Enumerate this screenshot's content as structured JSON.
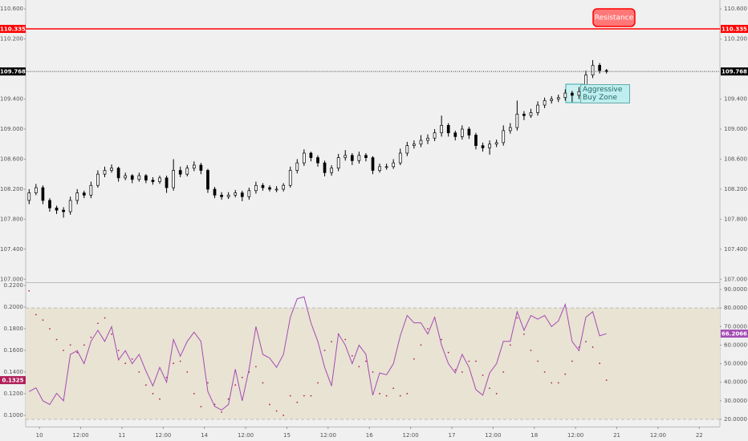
{
  "chart_data": [
    {
      "type": "candlestick",
      "x": [
        -3,
        -1,
        1,
        3,
        5,
        7,
        9,
        11,
        13,
        15,
        17,
        19,
        21,
        23,
        25,
        27,
        29,
        31,
        33,
        35,
        37,
        39,
        41,
        43,
        45,
        47,
        49,
        51,
        53,
        55,
        57,
        59,
        61,
        63,
        65,
        67,
        69,
        71,
        73,
        75,
        77,
        79,
        81,
        83,
        85,
        87,
        89,
        91,
        93,
        95,
        97,
        99,
        101,
        103,
        105,
        107,
        109,
        111,
        113,
        115,
        117,
        119,
        121,
        123,
        125,
        127,
        129,
        131,
        133,
        135,
        137,
        139,
        141,
        143,
        145,
        147,
        149,
        151,
        153,
        155,
        157,
        159,
        161,
        163,
        165
      ],
      "open": [
        108.05,
        108.15,
        108.22,
        108.05,
        107.95,
        107.92,
        107.9,
        108.05,
        108.15,
        108.12,
        108.25,
        108.4,
        108.45,
        108.48,
        108.35,
        108.38,
        108.33,
        108.38,
        108.32,
        108.3,
        108.35,
        108.22,
        108.45,
        108.4,
        108.48,
        108.52,
        108.45,
        108.2,
        108.12,
        108.1,
        108.12,
        108.15,
        108.1,
        108.18,
        108.25,
        108.22,
        108.2,
        108.2,
        108.25,
        108.45,
        108.55,
        108.68,
        108.62,
        108.55,
        108.42,
        108.48,
        108.62,
        108.65,
        108.58,
        108.65,
        108.62,
        108.45,
        108.5,
        108.5,
        108.55,
        108.68,
        108.78,
        108.8,
        108.85,
        108.88,
        108.95,
        109.05,
        108.95,
        108.9,
        109.0,
        108.92,
        108.78,
        108.75,
        108.8,
        108.82,
        108.98,
        109.02,
        109.2,
        109.18,
        109.22,
        109.32,
        109.38,
        109.4,
        109.42,
        109.48,
        109.45,
        109.5,
        109.72,
        109.85,
        109.78
      ],
      "high": [
        108.2,
        108.27,
        108.25,
        108.08,
        107.98,
        107.96,
        108.1,
        108.2,
        108.18,
        108.3,
        108.45,
        108.5,
        108.53,
        108.5,
        108.42,
        108.4,
        108.42,
        108.4,
        108.36,
        108.38,
        108.38,
        108.6,
        108.5,
        108.52,
        108.57,
        108.55,
        108.47,
        108.23,
        108.16,
        108.16,
        108.19,
        108.18,
        108.22,
        108.3,
        108.28,
        108.25,
        108.24,
        108.28,
        108.5,
        108.6,
        108.73,
        108.7,
        108.65,
        108.58,
        108.52,
        108.67,
        108.72,
        108.68,
        108.7,
        108.68,
        108.64,
        108.54,
        108.54,
        108.6,
        108.74,
        108.83,
        108.85,
        108.92,
        108.93,
        109.0,
        109.18,
        109.08,
        108.98,
        109.05,
        109.03,
        108.95,
        108.82,
        108.85,
        108.86,
        109.05,
        109.08,
        109.38,
        109.24,
        109.27,
        109.37,
        109.42,
        109.44,
        109.46,
        109.53,
        109.51,
        109.56,
        109.78,
        109.92,
        109.88,
        109.8
      ],
      "low": [
        108.0,
        108.12,
        108.0,
        107.9,
        107.87,
        107.82,
        107.86,
        108.0,
        108.08,
        108.08,
        108.22,
        108.36,
        108.42,
        108.3,
        108.32,
        108.28,
        108.3,
        108.28,
        108.26,
        108.27,
        108.15,
        108.18,
        108.36,
        108.37,
        108.44,
        108.4,
        108.15,
        108.08,
        108.06,
        108.07,
        108.09,
        108.04,
        108.06,
        108.14,
        108.18,
        108.17,
        108.16,
        108.17,
        108.22,
        108.41,
        108.51,
        108.57,
        108.5,
        108.37,
        108.38,
        108.44,
        108.58,
        108.52,
        108.54,
        108.57,
        108.4,
        108.42,
        108.46,
        108.47,
        108.52,
        108.64,
        108.74,
        108.76,
        108.8,
        108.84,
        108.9,
        108.9,
        108.85,
        108.86,
        108.87,
        108.73,
        108.7,
        108.66,
        108.76,
        108.78,
        108.94,
        108.98,
        109.12,
        109.15,
        109.18,
        109.28,
        109.34,
        109.36,
        109.38,
        109.36,
        109.4,
        109.46,
        109.68,
        109.74,
        109.74
      ],
      "close": [
        108.15,
        108.22,
        108.05,
        107.95,
        107.92,
        107.9,
        108.05,
        108.15,
        108.12,
        108.25,
        108.4,
        108.45,
        108.48,
        108.35,
        108.38,
        108.33,
        108.38,
        108.32,
        108.3,
        108.35,
        108.22,
        108.45,
        108.4,
        108.48,
        108.52,
        108.45,
        108.2,
        108.12,
        108.1,
        108.12,
        108.15,
        108.1,
        108.18,
        108.25,
        108.22,
        108.2,
        108.2,
        108.25,
        108.45,
        108.55,
        108.68,
        108.62,
        108.55,
        108.42,
        108.48,
        108.62,
        108.65,
        108.58,
        108.65,
        108.62,
        108.45,
        108.5,
        108.5,
        108.55,
        108.68,
        108.78,
        108.8,
        108.85,
        108.88,
        108.95,
        109.05,
        108.95,
        108.9,
        109.0,
        108.92,
        108.78,
        108.75,
        108.8,
        108.82,
        108.98,
        109.02,
        109.2,
        109.18,
        109.22,
        109.32,
        109.38,
        109.4,
        109.42,
        109.48,
        109.45,
        109.5,
        109.72,
        109.85,
        109.78,
        109.77
      ],
      "ylim": [
        106.96,
        110.72
      ],
      "yticks": [
        {
          "value": 110.6,
          "label": "110.600"
        },
        {
          "value": 110.2,
          "label": "110.200"
        },
        {
          "value": 109.4,
          "label": "109.400"
        },
        {
          "value": 109.0,
          "label": "109.000"
        },
        {
          "value": 108.6,
          "label": "108.600"
        },
        {
          "value": 108.2,
          "label": "108.200"
        },
        {
          "value": 107.8,
          "label": "107.800"
        },
        {
          "value": 107.4,
          "label": "107.400"
        },
        {
          "value": 107.0,
          "label": "107.000"
        }
      ],
      "resistance": 110.335,
      "resistance_color": "#ff0000",
      "last_price": 109.768,
      "annotations": [
        "Resistance",
        "Aggressive Buy Zone"
      ]
    },
    {
      "type": "indicator",
      "xlim": [
        -4,
        198
      ],
      "xticks": [
        {
          "value": 0,
          "label": "10"
        },
        {
          "value": 12,
          "label": "12:00"
        },
        {
          "value": 24,
          "label": "11"
        },
        {
          "value": 36,
          "label": "12:00"
        },
        {
          "value": 48,
          "label": "14"
        },
        {
          "value": 60,
          "label": "12:00"
        },
        {
          "value": 72,
          "label": "15"
        },
        {
          "value": 84,
          "label": "12:00"
        },
        {
          "value": 96,
          "label": "16"
        },
        {
          "value": 108,
          "label": "12:00"
        },
        {
          "value": 120,
          "label": "17"
        },
        {
          "value": 132,
          "label": "12:00"
        },
        {
          "value": 144,
          "label": "18"
        },
        {
          "value": 156,
          "label": "12:00"
        },
        {
          "value": 168,
          "label": "21"
        },
        {
          "value": 180,
          "label": "12:00"
        },
        {
          "value": 192,
          "label": "22"
        }
      ],
      "ylim": [
        0.0896,
        0.2222
      ],
      "yticks": [
        {
          "value": 0.22,
          "label": "0.2200"
        },
        {
          "value": 0.2,
          "label": "0.2000"
        },
        {
          "value": 0.18,
          "label": "0.1800"
        },
        {
          "value": 0.16,
          "label": "0.1600"
        },
        {
          "value": 0.14,
          "label": "0.1400"
        },
        {
          "value": 0.12,
          "label": "0.1200"
        },
        {
          "value": 0.1,
          "label": "0.1000"
        }
      ],
      "y2lim": [
        16.1,
        93.46
      ],
      "y2ticks": [
        {
          "value": 90,
          "label": "90.0000"
        },
        {
          "value": 80,
          "label": "80.0000"
        },
        {
          "value": 70,
          "label": "70.0000"
        },
        {
          "value": 60,
          "label": "60.0000"
        },
        {
          "value": 50,
          "label": "50.0000"
        },
        {
          "value": 40,
          "label": "40.0000"
        },
        {
          "value": 30,
          "label": "30.0000"
        },
        {
          "value": 20,
          "label": "20.0000"
        }
      ],
      "band": [
        20,
        80
      ],
      "series": [
        {
          "color": "#b0205a",
          "style": "dots",
          "axis": "y",
          "values": [
            0.215,
            0.193,
            0.188,
            0.18,
            0.17,
            0.16,
            0.165,
            0.158,
            0.165,
            0.172,
            0.185,
            0.19,
            0.175,
            0.16,
            0.148,
            0.152,
            0.14,
            0.128,
            0.12,
            0.115,
            0.135,
            0.148,
            0.15,
            0.14,
            0.12,
            0.108,
            0.13,
            0.11,
            0.103,
            0.115,
            0.128,
            0.135,
            0.14,
            0.145,
            0.13,
            0.11,
            0.104,
            0.1,
            0.118,
            0.112,
            0.118,
            0.118,
            0.13,
            0.16,
            0.168,
            0.175,
            0.17,
            0.155,
            0.145,
            0.15,
            0.14,
            0.12,
            0.118,
            0.125,
            0.118,
            0.12,
            0.152,
            0.165,
            0.18,
            0.19,
            0.17,
            0.158,
            0.142,
            0.14,
            0.15,
            0.15,
            0.137,
            0.125,
            0.12,
            0.14,
            0.165,
            0.19,
            0.175,
            0.16,
            0.15,
            0.14,
            0.13,
            0.13,
            0.138,
            0.15,
            0.163,
            0.168,
            0.163,
            0.148,
            0.1325
          ]
        },
        {
          "color": "#a34bb4",
          "style": "line",
          "axis": "y2",
          "values": [
            35,
            37,
            30,
            28,
            34,
            30,
            55,
            57,
            50,
            62,
            68,
            62,
            70,
            52,
            57,
            50,
            55,
            46,
            38,
            48,
            40,
            63,
            54,
            62,
            67,
            62,
            35,
            27,
            25,
            28,
            47,
            30,
            47,
            70,
            55,
            53,
            48,
            55,
            75,
            85,
            86,
            72,
            62,
            48,
            38,
            66,
            60,
            50,
            60,
            55,
            33,
            45,
            44,
            50,
            65,
            76,
            72,
            72,
            66,
            75,
            60,
            50,
            45,
            55,
            48,
            36,
            33,
            45,
            50,
            62,
            62,
            78,
            68,
            76,
            74,
            76,
            70,
            73,
            82,
            62,
            57,
            75,
            78,
            65,
            66.2066
          ]
        }
      ]
    }
  ]
}
